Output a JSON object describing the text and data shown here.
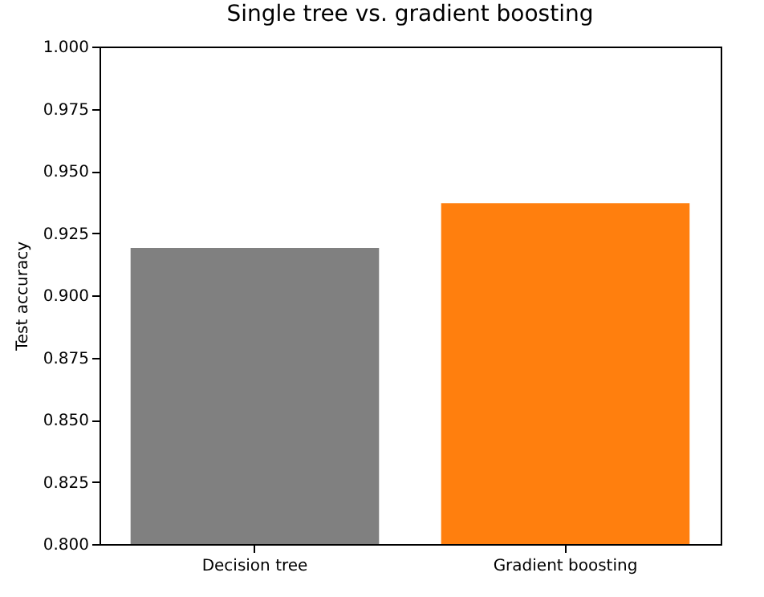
{
  "chart_data": {
    "type": "bar",
    "title": "Single tree vs. gradient boosting",
    "ylabel": "Test accuracy",
    "categories": [
      "Decision tree",
      "Gradient boosting"
    ],
    "values": [
      0.919,
      0.937
    ],
    "colors": [
      "#808080",
      "#ff7f0e"
    ],
    "ylim": [
      0.8,
      1.0
    ],
    "yticks": [
      {
        "value": 0.8,
        "label": "0.800"
      },
      0.825,
      {
        "value": 0.85,
        "label": "0.850"
      },
      0.875,
      {
        "value": 0.9,
        "label": "0.900"
      },
      0.925,
      {
        "value": 0.95,
        "label": "0.950"
      },
      0.975,
      {
        "value": 1.0,
        "label": "1.000"
      }
    ],
    "grid": false
  }
}
